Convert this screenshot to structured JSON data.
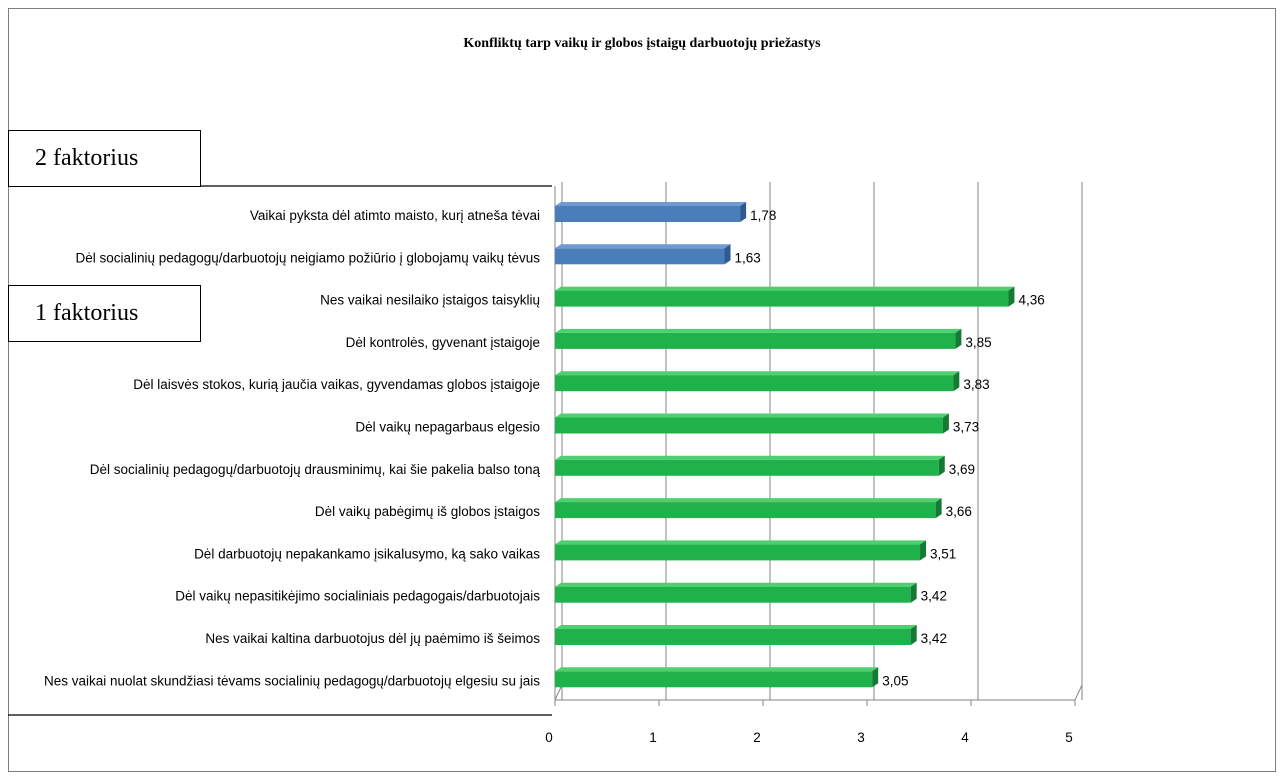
{
  "chart_data": {
    "type": "bar",
    "orientation": "horizontal",
    "title": "Konfliktų tarp vaikų ir globos įstaigų darbuotojų priežastys",
    "categories": [
      "Vaikai pyksta dėl atimto maisto, kurį atneša tėvai",
      "Dėl socialinių pedagogų/darbuotojų neigiamo požiūrio į globojamų vaikų tėvus",
      "Nes vaikai nesilaiko įstaigos taisyklių",
      "Dėl kontrolės, gyvenant įstaigoje",
      "Dėl laisvės stokos, kurią jaučia vaikas, gyvendamas globos įstaigoje",
      "Dėl vaikų nepagarbaus elgesio",
      "Dėl socialinių pedagogų/darbuotojų drausminimų, kai šie pakelia balso toną",
      "Dėl vaikų pabėgimų iš globos įstaigos",
      "Dėl darbuotojų nepakankamo įsikalusymo, ką sako vaikas",
      "Dėl vaikų nepasitikėjimo socialiniais pedagogais/darbuotojais",
      "Nes vaikai kaltina darbuotojus dėl jų paėmimo iš šeimos",
      "Nes vaikai nuolat skundžiasi tėvams socialinių pedagogų/darbuotojų elgesiu su jais"
    ],
    "values": [
      1.78,
      1.63,
      4.36,
      3.85,
      3.83,
      3.73,
      3.69,
      3.66,
      3.51,
      3.42,
      3.42,
      3.05
    ],
    "value_labels": [
      "1,78",
      "1,63",
      "4,36",
      "3,85",
      "3,83",
      "3,73",
      "3,69",
      "3,66",
      "3,51",
      "3,42",
      "3,42",
      "3,05"
    ],
    "groups": [
      {
        "label": "2 faktorius",
        "first": 0,
        "last": 1,
        "color": "#4a7ebb",
        "side_color": "#2f5a8f",
        "top_color": "#6f9ad2"
      },
      {
        "label": "1 faktorius",
        "first": 2,
        "last": 11,
        "color": "#20b24a",
        "side_color": "#157a33",
        "top_color": "#4fd070"
      }
    ],
    "xlim": [
      0,
      5
    ],
    "xticks": [
      "0",
      "1",
      "2",
      "3",
      "4",
      "5"
    ],
    "grid": true,
    "legend": "none",
    "style": "3d"
  }
}
